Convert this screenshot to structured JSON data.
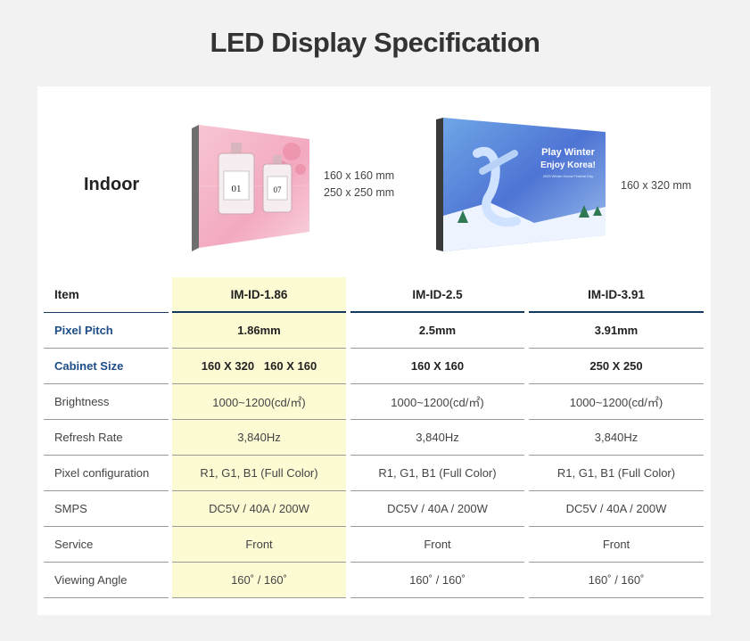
{
  "title": "LED Display Specification",
  "indoor_label": "Indoor",
  "product1_sizes": [
    "160 x 160 mm",
    "250 x 250 mm"
  ],
  "product2_sizes": [
    "160 x 320 mm"
  ],
  "product1_image": {
    "bottle1_number": "01",
    "bottle2_number": "07"
  },
  "product2_image": {
    "headline1": "Play Winter",
    "headline2": "Enjoy Korea!",
    "subline": "2025 Winter Korea Festival Day"
  },
  "table": {
    "header": [
      "Item",
      "IM-ID-1.86",
      "IM-ID-2.5",
      "IM-ID-3.91"
    ],
    "rows": [
      [
        "Pixel Pitch",
        "1.86mm",
        "2.5mm",
        "3.91mm"
      ],
      [
        "Cabinet Size",
        "160 X 320   160 X 160",
        "160 X 160",
        "250 X 250"
      ],
      [
        "Brightness",
        "1000~1200(cd/㎡)",
        "1000~1200(cd/㎡)",
        "1000~1200(cd/㎡)"
      ],
      [
        "Refresh Rate",
        "3,840Hz",
        "3,840Hz",
        "3,840Hz"
      ],
      [
        "Pixel configuration",
        "R1, G1, B1 (Full Color)",
        "R1, G1, B1 (Full Color)",
        "R1, G1, B1 (Full Color)"
      ],
      [
        "SMPS",
        "DC5V / 40A / 200W",
        "DC5V / 40A / 200W",
        "DC5V / 40A / 200W"
      ],
      [
        "Service",
        "Front",
        "Front",
        "Front"
      ],
      [
        "Viewing Angle",
        "160˚ / 160˚",
        "160˚ / 160˚",
        "160˚ / 160˚"
      ]
    ]
  },
  "colors": {
    "header_line": "#123a60",
    "highlight_column": "#fdfbd3",
    "blue_label": "#1c4d86"
  }
}
